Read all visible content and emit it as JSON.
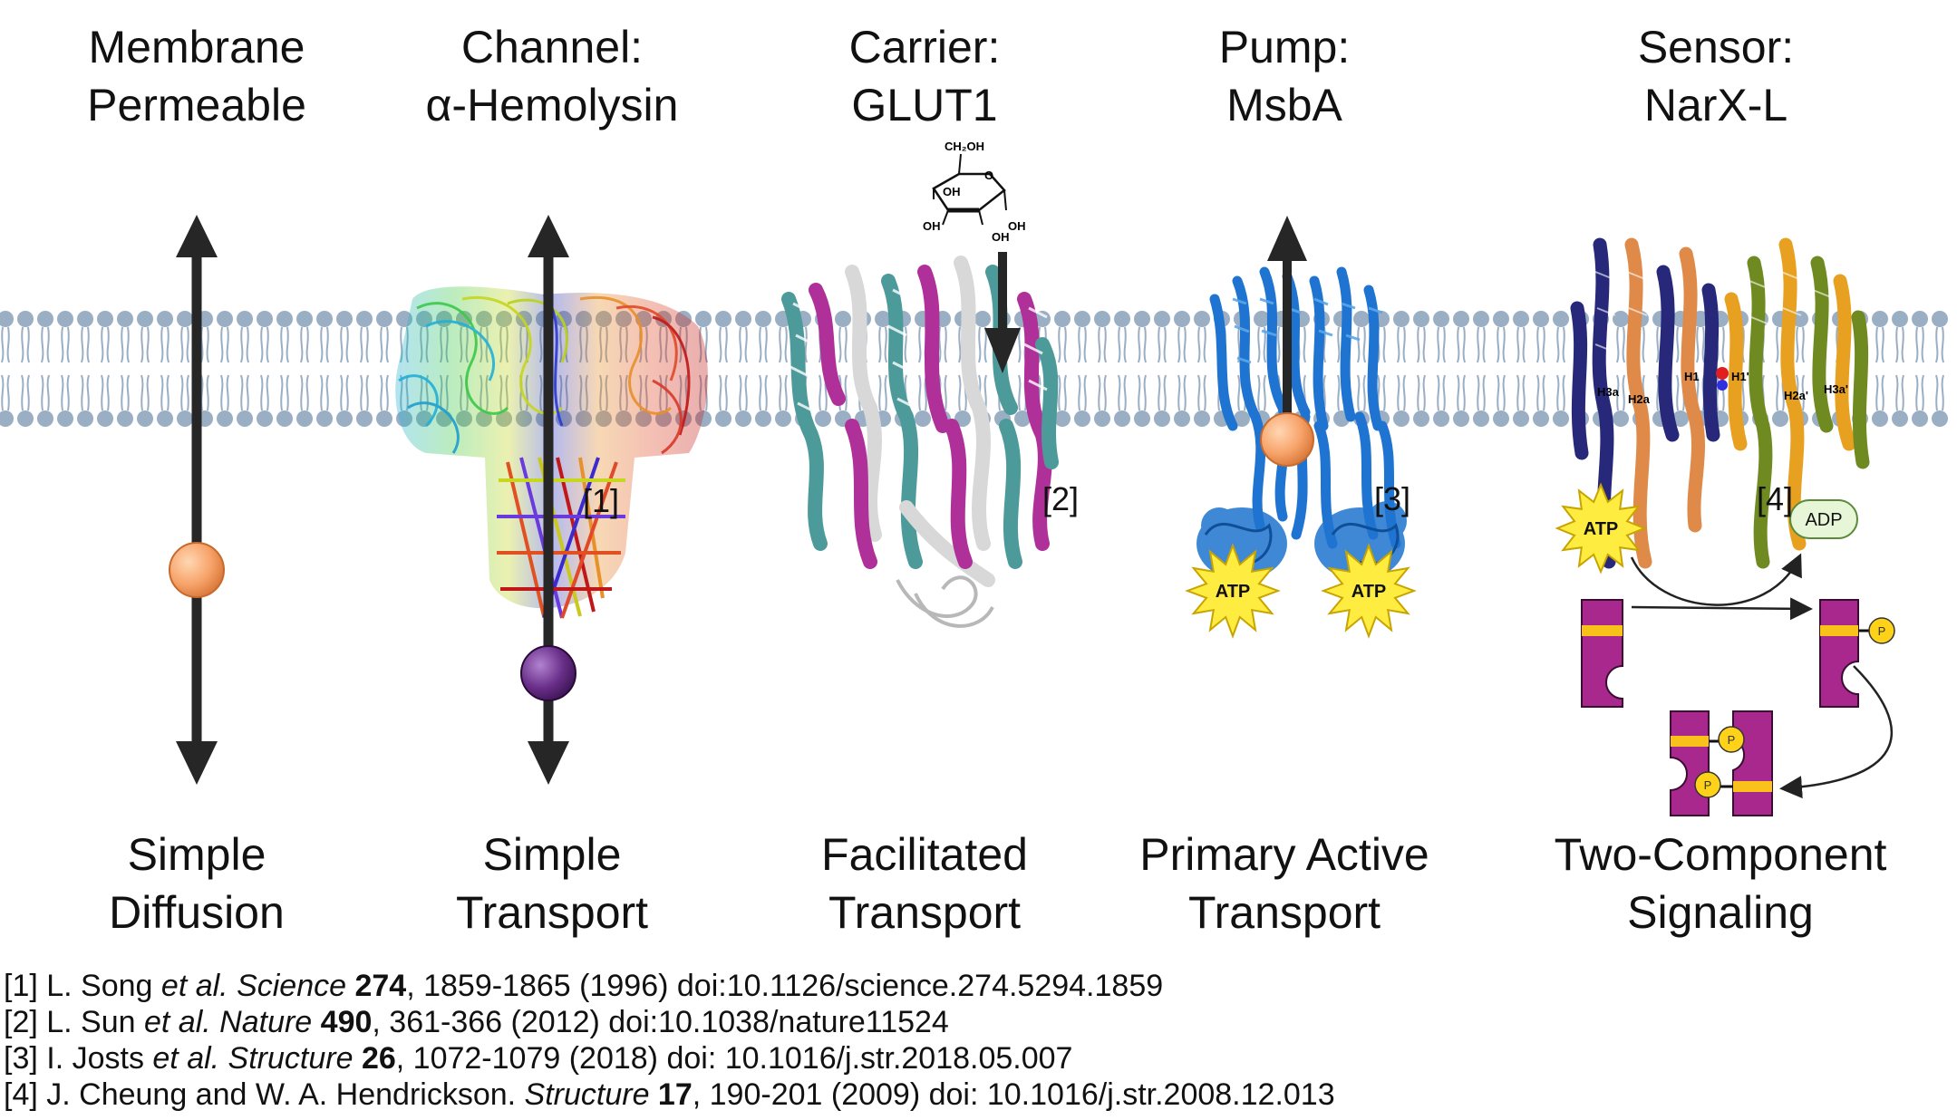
{
  "columns": [
    {
      "title_line1": "Membrane",
      "title_line2": "Permeable",
      "caption_line1": "Simple",
      "caption_line2": "Diffusion",
      "ref": ""
    },
    {
      "title_line1": "Channel:",
      "title_line2": "α-Hemolysin",
      "caption_line1": "Simple",
      "caption_line2": "Transport",
      "ref": "[1]"
    },
    {
      "title_line1": "Carrier:",
      "title_line2": "GLUT1",
      "caption_line1": "Facilitated",
      "caption_line2": "Transport",
      "ref": "[2]"
    },
    {
      "title_line1": "Pump:",
      "title_line2": "MsbA",
      "caption_line1": "Primary Active",
      "caption_line2": "Transport",
      "ref": "[3]"
    },
    {
      "title_line1": "Sensor:",
      "title_line2": "NarX-L",
      "caption_line1": "Two-Component",
      "caption_line2": "Signaling",
      "ref": "[4]"
    }
  ],
  "molecule_labels": {
    "ch2oh": "CH₂OH",
    "o": "O",
    "oh": "OH"
  },
  "atp_label": "ATP",
  "adp_label": "ADP",
  "phospho_label": "P",
  "helix_labels": {
    "h1": "H1",
    "h1p": "H1'",
    "h2a": "H2a",
    "h2ap": "H2a'",
    "h3a": "H3a",
    "h3ap": "H3a'"
  },
  "references": [
    {
      "num": "[1] L. Song ",
      "etal": "et al.",
      "journal": " Science ",
      "vol": "274",
      "rest": ", 1859-1865 (1996) doi:10.1126/science.274.5294.1859"
    },
    {
      "num": "[2] L. Sun ",
      "etal": "et al.",
      "journal": " Nature ",
      "vol": "490",
      "rest": ", 361-366 (2012) doi:10.1038/nature11524"
    },
    {
      "num": "[3] I. Josts ",
      "etal": "et al.",
      "journal": " Structure ",
      "vol": "26",
      "rest": ", 1072-1079 (2018) doi: 10.1016/j.str.2018.05.007"
    },
    {
      "num": "[4] J. Cheung and W. A. Hendrickson. ",
      "etal": "",
      "journal": "Structure ",
      "vol": "17",
      "rest": ", 190-201 (2009) doi: 10.1016/j.str.2008.12.013"
    }
  ],
  "colors": {
    "membrane": "#9aaec4",
    "arrow": "#262626",
    "solute_orange": "#f7a36a",
    "solute_purple": "#6a2f8a",
    "glut_teal": "#4d9a9a",
    "glut_magenta": "#b0309a",
    "msba_blue": "#1e74d0",
    "narx_navy": "#27287a",
    "narx_orange": "#e08a4a",
    "narx_olive": "#6f8a20",
    "atp_yellow": "#ffec40",
    "adp_green": "#e6f6d6",
    "response_magenta": "#a8288e",
    "stripe_yellow": "#f8c21a"
  }
}
